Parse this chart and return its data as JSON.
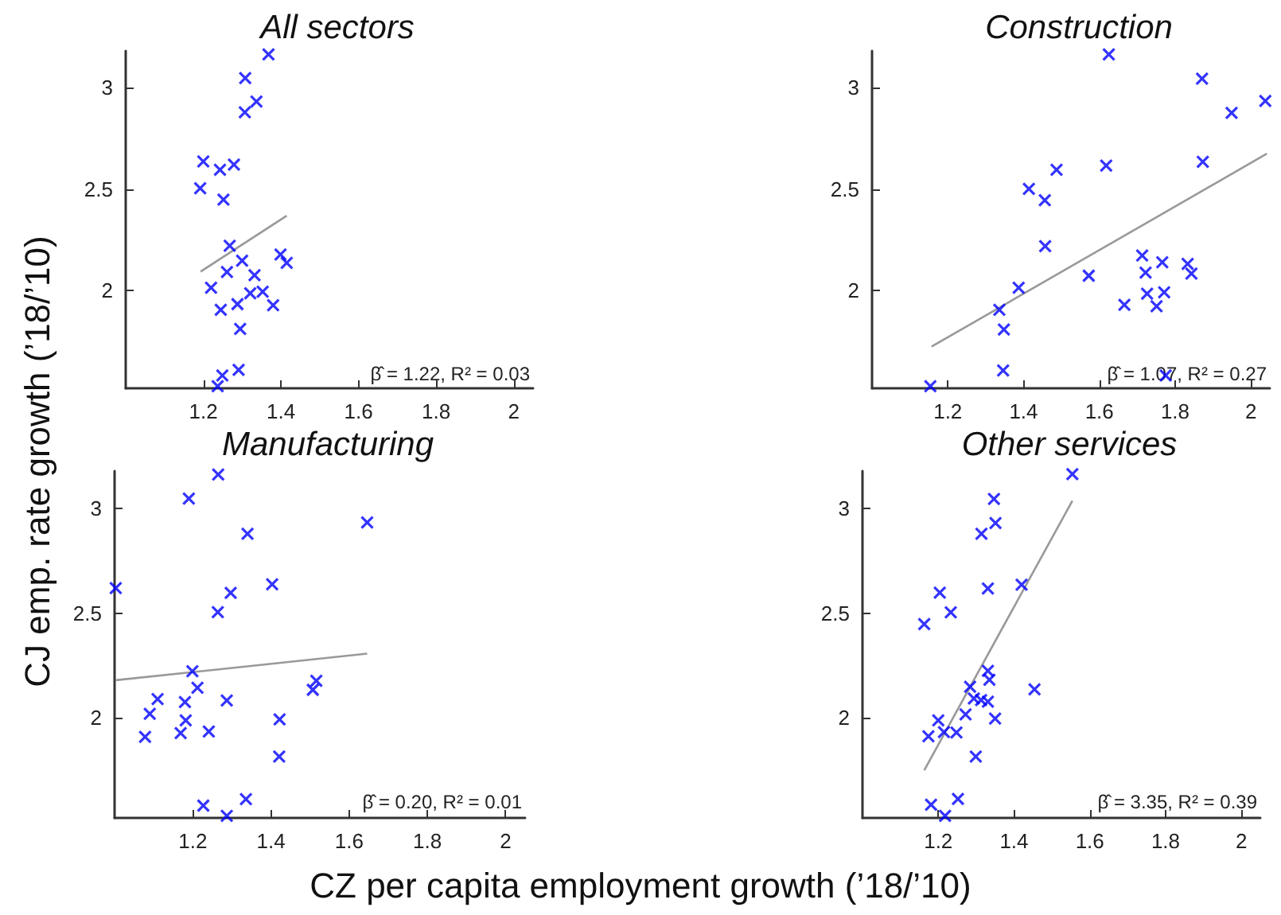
{
  "chart_data": [
    {
      "type": "scatter",
      "title": "All sectors",
      "ylabel": "CJ emp. rate growth (’18/’10)",
      "xlim": [
        1.0,
        2.05
      ],
      "xticks": [
        1.2,
        1.4,
        1.6,
        1.8,
        2
      ],
      "ylim": [
        1.52,
        3.18
      ],
      "yticks": [
        2,
        2.5,
        3
      ],
      "annotations": [
        "β̂ = 1.22, R² = 0.03"
      ],
      "series": [
        {
          "marker": "cross",
          "color": "#0000ff",
          "x": [
            1.368,
            1.308,
            1.337,
            1.307,
            1.2,
            1.243,
            1.279,
            1.192,
            1.252,
            1.268,
            1.22,
            1.261,
            1.3,
            1.332,
            1.399,
            1.415,
            1.353,
            1.321,
            1.288,
            1.38,
            1.245,
            1.295,
            1.291,
            1.249,
            1.237
          ],
          "values": [
            3.163,
            3.046,
            2.931,
            2.878,
            2.636,
            2.595,
            2.621,
            2.504,
            2.448,
            2.221,
            2.015,
            2.092,
            2.148,
            2.076,
            2.178,
            2.137,
            1.995,
            1.987,
            1.934,
            1.929,
            1.906,
            1.812,
            1.611,
            1.583,
            1.53
          ]
        },
        {
          "type": "line",
          "marker": "none",
          "color": "#999999",
          "x": [
            1.193,
            1.415
          ],
          "values": [
            2.094,
            2.369
          ]
        }
      ]
    },
    {
      "type": "scatter",
      "title": "Construction",
      "xlim": [
        1.0,
        2.05
      ],
      "xticks": [
        1.2,
        1.4,
        1.6,
        1.8,
        2
      ],
      "ylim": [
        1.52,
        3.18
      ],
      "yticks": [
        2,
        2.5,
        3
      ],
      "annotations": [
        "β̂ = 1.07, R² = 0.27"
      ],
      "series": [
        {
          "marker": "cross",
          "color": "#0000ff",
          "x": [
            1.625,
            1.871,
            2.038,
            1.949,
            1.873,
            1.618,
            1.487,
            1.414,
            1.456,
            1.457,
            1.387,
            1.572,
            1.713,
            1.722,
            1.766,
            1.833,
            1.843,
            1.771,
            1.726,
            1.666,
            1.751,
            1.336,
            1.348,
            1.346,
            1.775,
            1.154
          ],
          "values": [
            3.163,
            3.043,
            2.934,
            2.875,
            2.634,
            2.616,
            2.595,
            2.501,
            2.445,
            2.219,
            2.015,
            2.074,
            2.173,
            2.089,
            2.14,
            2.132,
            2.084,
            1.992,
            1.985,
            1.931,
            1.924,
            1.906,
            1.809,
            1.608,
            1.583,
            1.53
          ]
        },
        {
          "type": "line",
          "marker": "none",
          "color": "#999999",
          "x": [
            1.157,
            2.042
          ],
          "values": [
            1.725,
            2.674
          ]
        }
      ]
    },
    {
      "type": "scatter",
      "title": "Manufacturing",
      "xlabel": "CZ per capita employment growth (’18/’10)",
      "xlim": [
        1.0,
        2.05
      ],
      "xticks": [
        1.2,
        1.4,
        1.6,
        1.8,
        2
      ],
      "ylim": [
        1.52,
        3.18
      ],
      "yticks": [
        2,
        2.5,
        3
      ],
      "annotations": [
        "β̂ = 0.20, R² = 0.01"
      ],
      "series": [
        {
          "marker": "cross",
          "color": "#0000ff",
          "x": [
            1.265,
            1.19,
            1.646,
            1.34,
            1.003,
            1.403,
            1.297,
            1.264,
            1.199,
            1.212,
            1.11,
            1.18,
            1.09,
            1.287,
            1.516,
            1.507,
            1.422,
            1.182,
            1.169,
            1.241,
            1.078,
            1.421,
            1.336,
            1.227,
            1.287
          ],
          "values": [
            3.163,
            3.048,
            2.934,
            2.88,
            2.62,
            2.638,
            2.597,
            2.505,
            2.222,
            2.143,
            2.089,
            2.074,
            2.018,
            2.082,
            2.176,
            2.133,
            1.992,
            1.987,
            1.926,
            1.934,
            1.908,
            1.814,
            1.61,
            1.579,
            1.53
          ]
        },
        {
          "type": "line",
          "marker": "none",
          "color": "#999999",
          "x": [
            1.003,
            1.646
          ],
          "values": [
            2.179,
            2.306
          ]
        }
      ]
    },
    {
      "type": "scatter",
      "title": "Other services",
      "xlim": [
        1.0,
        2.05
      ],
      "xticks": [
        1.2,
        1.4,
        1.6,
        1.8,
        2
      ],
      "ylim": [
        1.52,
        3.18
      ],
      "yticks": [
        2,
        2.5,
        3
      ],
      "annotations": [
        "β̂ = 3.35, R² = 0.39"
      ],
      "series": [
        {
          "marker": "cross",
          "color": "#0000ff",
          "x": [
            1.554,
            1.347,
            1.351,
            1.314,
            1.42,
            1.204,
            1.331,
            1.233,
            1.163,
            1.331,
            1.335,
            1.284,
            1.454,
            1.294,
            1.313,
            1.331,
            1.272,
            1.35,
            1.2,
            1.215,
            1.248,
            1.174,
            1.299,
            1.252,
            1.181,
            1.218
          ],
          "values": [
            3.165,
            3.046,
            2.931,
            2.88,
            2.636,
            2.598,
            2.618,
            2.504,
            2.448,
            2.224,
            2.181,
            2.148,
            2.135,
            2.092,
            2.084,
            2.076,
            2.015,
            1.995,
            1.987,
            1.931,
            1.929,
            1.911,
            1.814,
            1.611,
            1.583,
            1.53
          ]
        },
        {
          "type": "line",
          "marker": "none",
          "color": "#999999",
          "x": [
            1.163,
            1.554
          ],
          "values": [
            1.748,
            3.038
          ]
        }
      ]
    }
  ]
}
